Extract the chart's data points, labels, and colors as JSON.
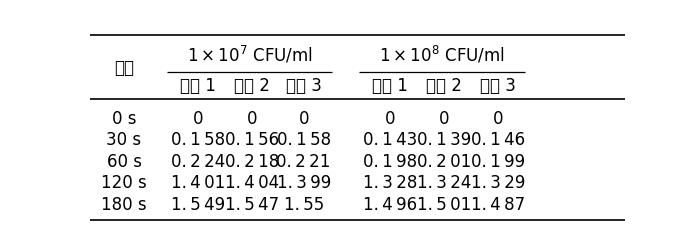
{
  "group1_header": "1 × 10$^7$ CFU/ml",
  "group2_header": "1 × 10$^8$ CFU/ml",
  "time_label": "时间",
  "sub_cols": [
    "实验 1",
    "实验 2",
    "实验 3"
  ],
  "data_rows": [
    [
      "0 s",
      "0",
      "0",
      "0",
      "0",
      "0",
      "0"
    ],
    [
      "30 s",
      "0. 1 58",
      "0. 1 56",
      "0. 1 58",
      "0. 1 43",
      "0. 1 39",
      "0. 1 46"
    ],
    [
      "60 s",
      "0. 2 24",
      "0. 2 18",
      "0. 2 21",
      "0. 1 98",
      "0. 2 01",
      "0. 1 99"
    ],
    [
      "120 s",
      "1. 4 01",
      "1. 4 04",
      "1. 3 99",
      "1. 3 28",
      "1. 3 24",
      "1. 3 29"
    ],
    [
      "180 s",
      "1. 5 49",
      "1. 5 47",
      "1. 55",
      "1. 4 96",
      "1. 5 01",
      "1. 4 87"
    ]
  ],
  "font_size": 12,
  "bg_color": "#ffffff",
  "text_color": "#000000",
  "line_color": "#000000"
}
